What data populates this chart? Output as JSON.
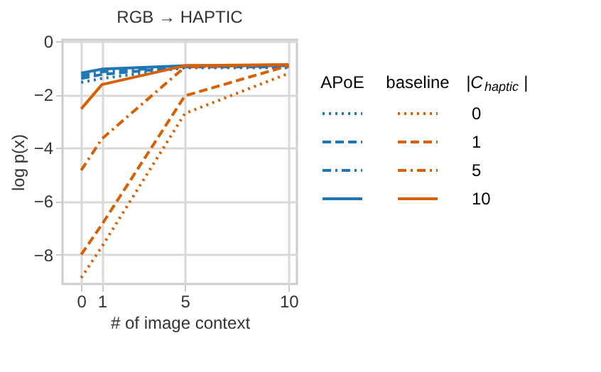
{
  "chart_data": {
    "type": "line",
    "title": "RGB → HAPTIC",
    "xlabel": "# of image context",
    "ylabel": "log p(x)",
    "x": [
      0,
      1,
      5,
      10
    ],
    "series": [
      {
        "color": "#1f77b4",
        "line_style": "dotted",
        "values": [
          -1.55,
          -1.4,
          -1.0,
          -1.0
        ]
      },
      {
        "color": "#1f77b4",
        "line_style": "dashed",
        "values": [
          -1.4,
          -1.25,
          -0.97,
          -0.97
        ]
      },
      {
        "color": "#1f77b4",
        "line_style": "dashdot",
        "values": [
          -1.3,
          -1.15,
          -0.95,
          -0.95
        ]
      },
      {
        "color": "#1f77b4",
        "line_style": "solid",
        "values": [
          -1.2,
          -1.05,
          -0.92,
          -0.92
        ]
      },
      {
        "name": "0",
        "color": "#d95f02",
        "line_style": "dotted",
        "values": [
          -8.87,
          -7.7,
          -2.71,
          -1.21
        ]
      },
      {
        "name": "1",
        "color": "#d95f02",
        "line_style": "dashed",
        "values": [
          -8.0,
          -6.87,
          -2.05,
          -0.92
        ]
      },
      {
        "name": "5",
        "color": "#d95f02",
        "line_style": "dashdot",
        "values": [
          -4.84,
          -3.66,
          -0.97,
          -0.88
        ]
      },
      {
        "name": "10",
        "color": "#d95f02",
        "line_style": "solid",
        "values": [
          -2.54,
          -1.63,
          -0.92,
          -0.88
        ]
      }
    ],
    "xlim": [
      -0.9,
      10.4
    ],
    "ylim": [
      -9.1,
      0.05
    ],
    "xticks": [
      0,
      1,
      5,
      10
    ],
    "yticks": [
      0,
      -2,
      -4,
      -6,
      -8
    ],
    "grid": true,
    "legend": "right",
    "legend_title": "|C$_{haptic}$|",
    "annotations": [
      "APoE",
      "baseline"
    ]
  }
}
